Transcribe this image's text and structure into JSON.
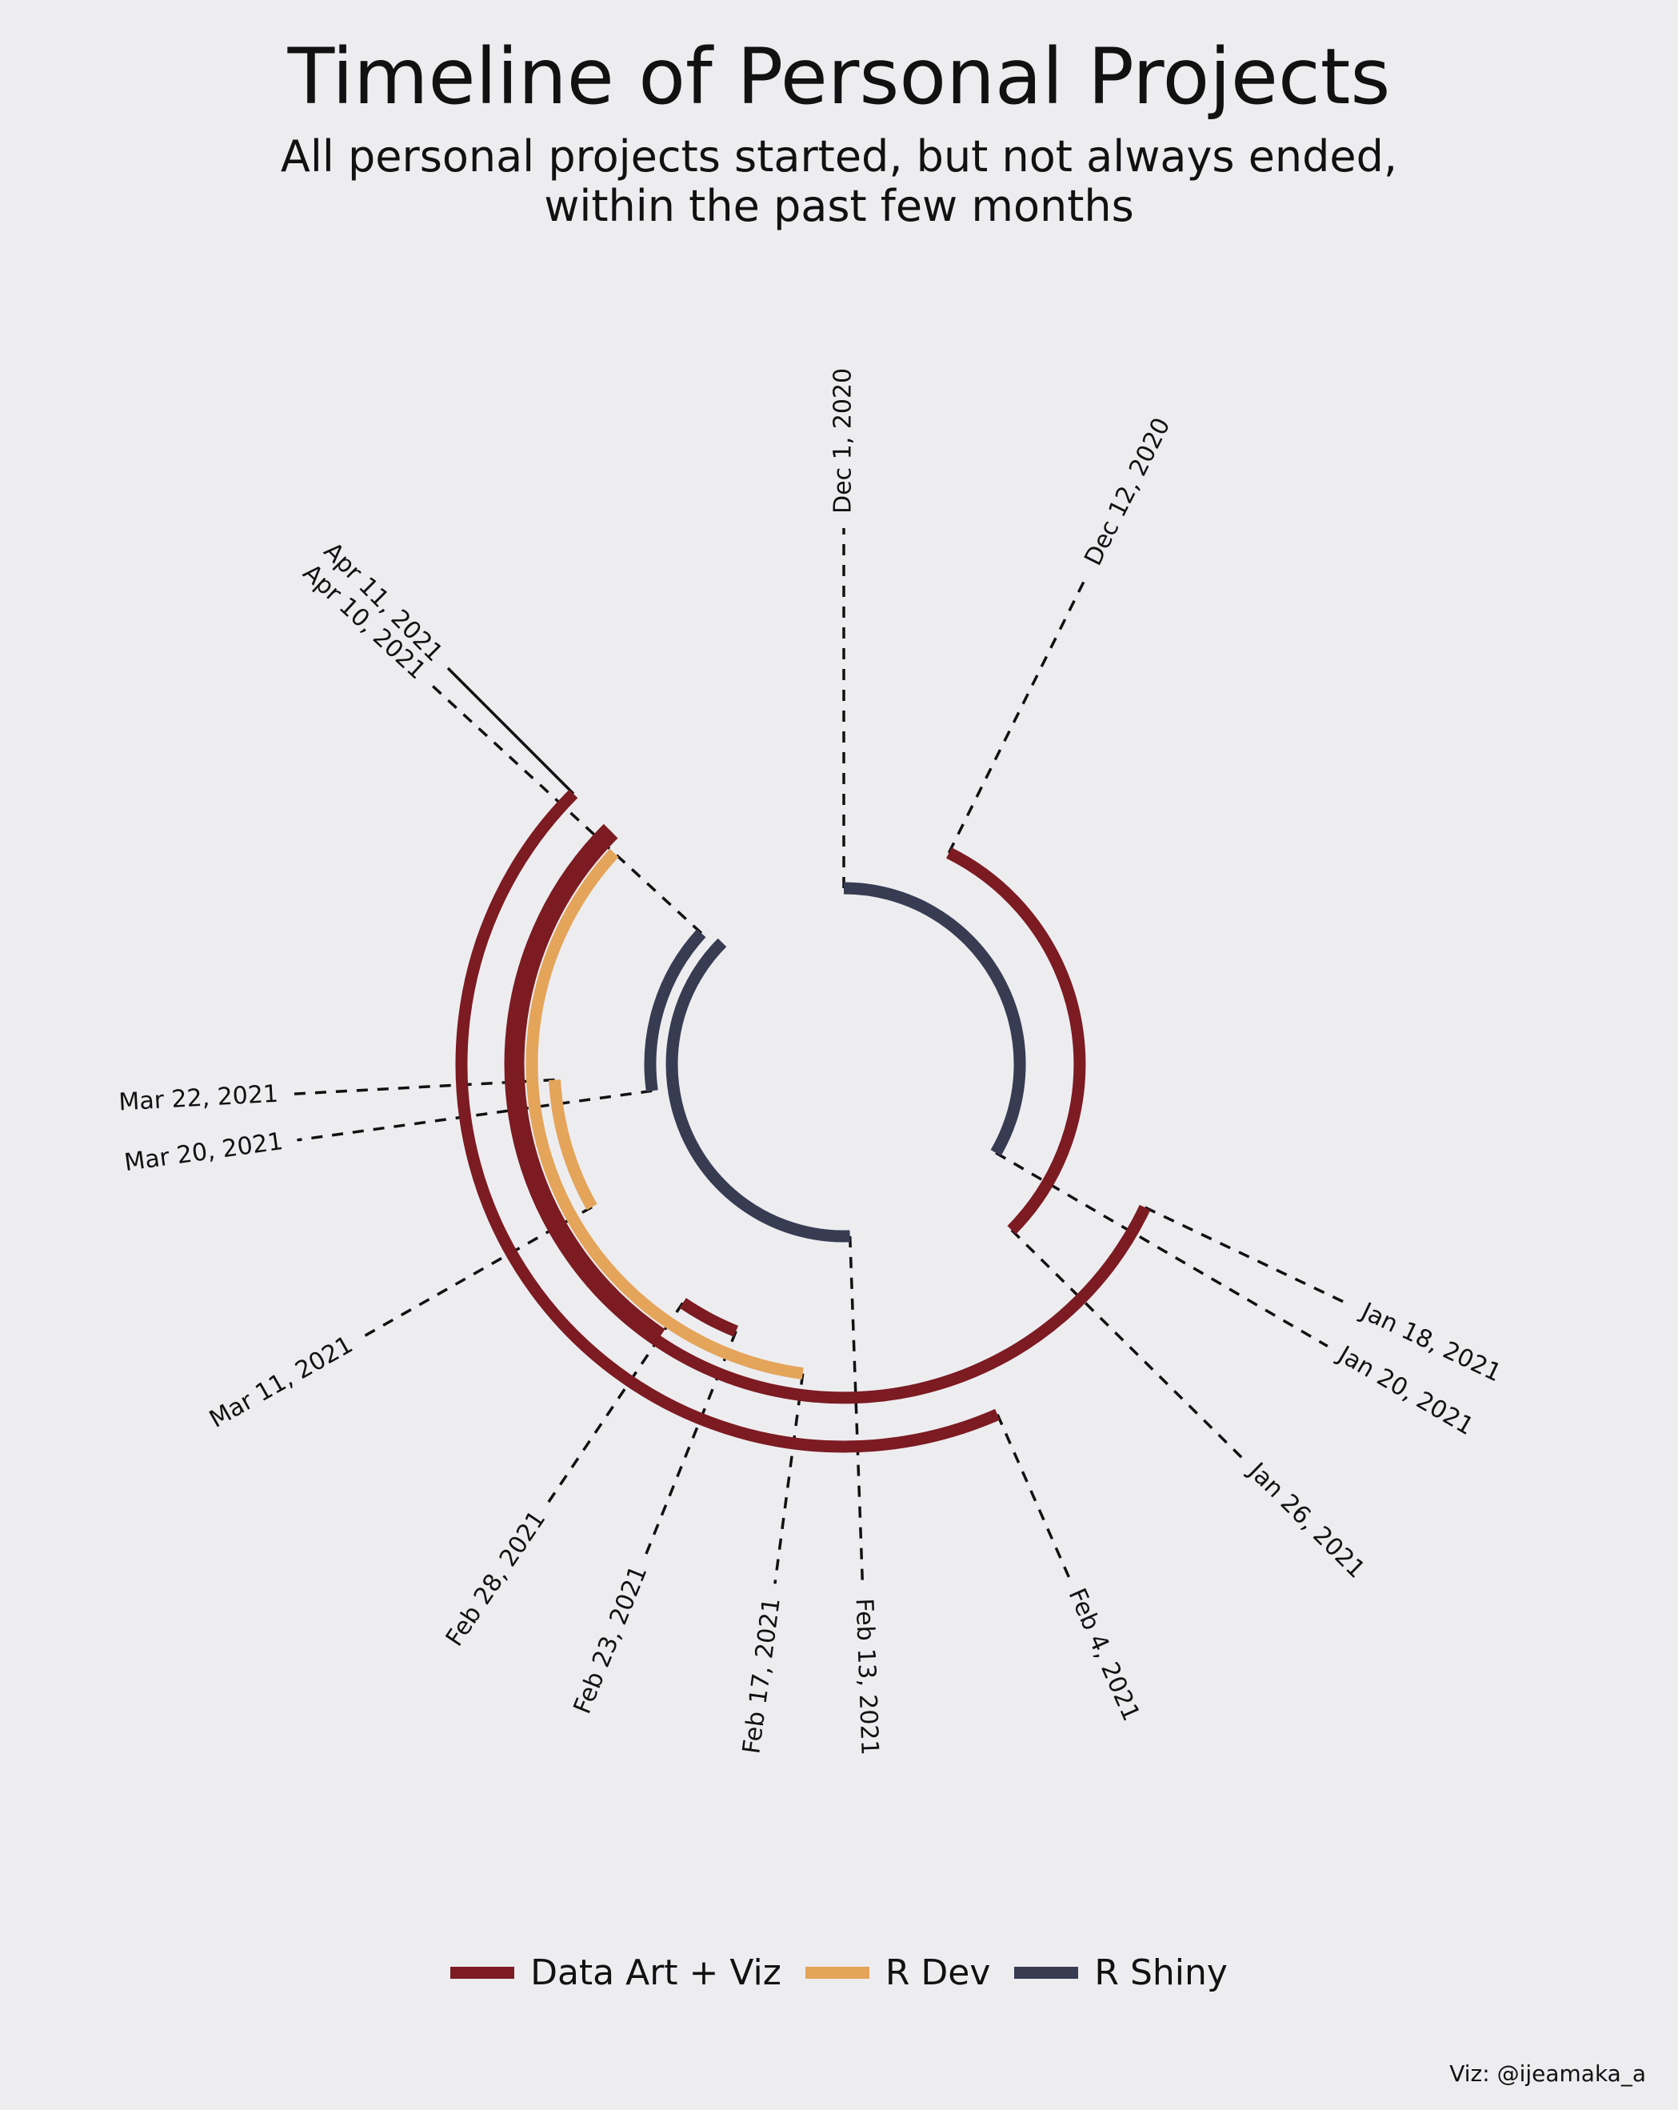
{
  "title": "Timeline of Personal Projects",
  "subtitle_lines": [
    "All personal projects started, but not always ended,",
    "within the past few months"
  ],
  "caption": "Viz: @ijeamaka_a",
  "colors": {
    "Data Art + Viz": "#7c1b22",
    "R Dev": "#e4a45a",
    "R Shiny": "#383c52",
    "background": "#ededf0"
  },
  "legend": [
    {
      "label": "Data Art + Viz",
      "color": "#7c1b22"
    },
    {
      "label": "R Dev",
      "color": "#e4a45a"
    },
    {
      "label": "R Shiny",
      "color": "#383c52"
    }
  ],
  "chart_data": {
    "type": "radial-timeline",
    "start_date": "Dec 1, 2020",
    "end_date": "Apr 11, 2021",
    "projects": [
      {
        "category": "R Shiny",
        "start": "Dec 1, 2020",
        "end": "Jan 20, 2021"
      },
      {
        "category": "Data Art + Viz",
        "start": "Dec 12, 2020",
        "end": "Jan 26, 2021"
      },
      {
        "category": "Data Art + Viz",
        "start": "Jan 18, 2021",
        "end": "Apr 11, 2021"
      },
      {
        "category": "Data Art + Viz",
        "start": "Feb 4, 2021",
        "end": "Apr 11, 2021"
      },
      {
        "category": "Data Art + Viz",
        "start": "Feb 28, 2021",
        "end": "Apr 11, 2021"
      },
      {
        "category": "R Dev",
        "start": "Feb 17, 2021",
        "end": "Apr 10, 2021"
      },
      {
        "category": "R Dev",
        "start": "Mar 11, 2021",
        "end": "Mar 22, 2021"
      },
      {
        "category": "Data Art + Viz",
        "start": "Feb 23, 2021",
        "end": "Feb 28, 2021"
      },
      {
        "category": "R Shiny",
        "start": "Feb 13, 2021",
        "end": "Apr 11, 2021"
      },
      {
        "category": "R Shiny",
        "start": "Mar 20, 2021",
        "end": "Apr 10, 2021"
      }
    ],
    "date_labels": [
      "Dec 1, 2020",
      "Dec 12, 2020",
      "Jan 18, 2021",
      "Jan 20, 2021",
      "Jan 26, 2021",
      "Feb 4, 2021",
      "Feb 13, 2021",
      "Feb 17, 2021",
      "Feb 23, 2021",
      "Feb 28, 2021",
      "Mar 11, 2021",
      "Mar 20, 2021",
      "Mar 22, 2021",
      "Apr 10, 2021",
      "Apr 11, 2021"
    ]
  }
}
